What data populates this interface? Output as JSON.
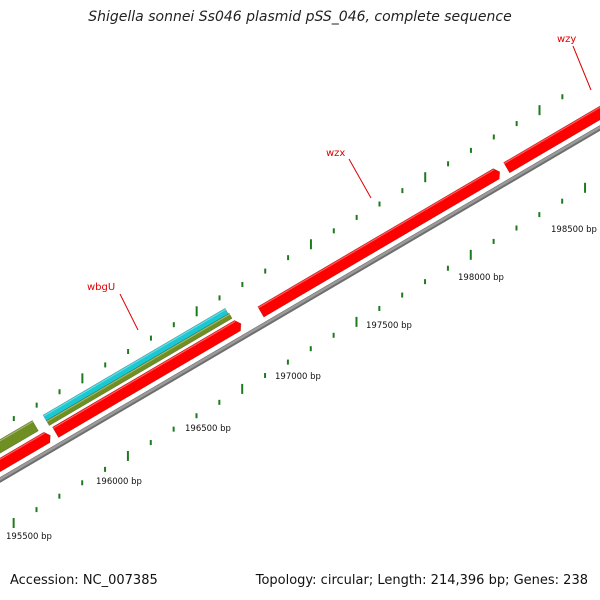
{
  "title": "Shigella sonnei Ss046 plasmid pSS_046, complete sequence",
  "footer": {
    "accession": "Accession: NC_007385",
    "summary": "Topology: circular; Length: 214,396 bp; Genes: 238"
  },
  "colors": {
    "backbone": "#9a9a9a",
    "gene_red": "#ff0000",
    "gene_cyan": "#19c8d2",
    "gene_olive": "#6f8f22",
    "tick_green": "#1e7a1e",
    "label_red": "#e00000"
  },
  "scale_labels": [
    "195500 bp",
    "196000 bp",
    "196500 bp",
    "197000 bp",
    "197500 bp",
    "198000 bp",
    "198500 bp"
  ],
  "gene_labels": [
    "wbgU",
    "wzx",
    "wzy"
  ]
}
